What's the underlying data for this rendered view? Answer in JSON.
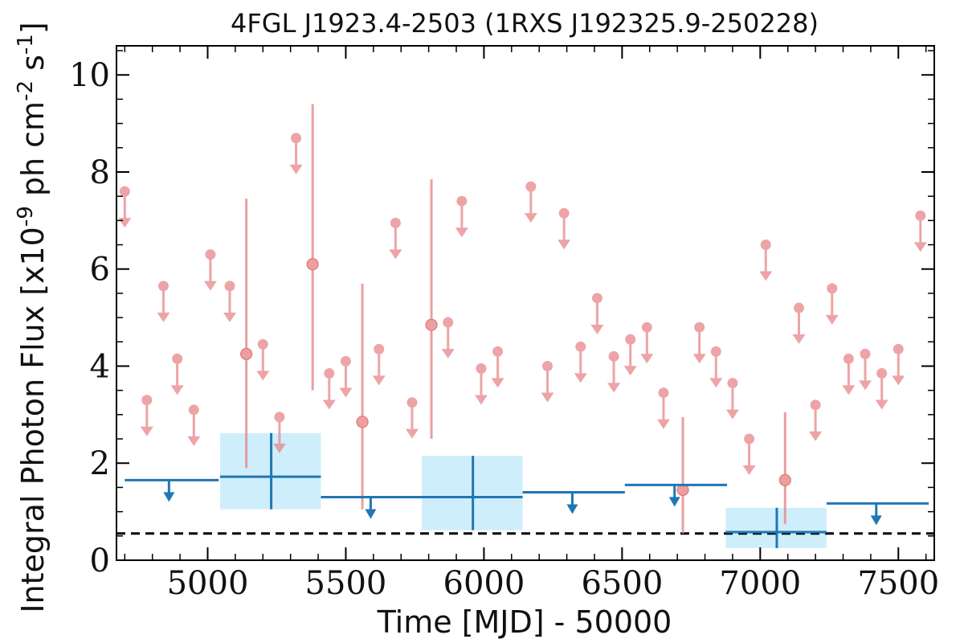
{
  "chart_data": {
    "type": "scatter",
    "title": "4FGL J1923.4-2503 (1RXS J192325.9-250228)",
    "xlabel": "Time [MJD] - 50000",
    "ylabel": "Integral Photon Flux [x10^-9 ph cm^-2 s^-1]",
    "xlim": [
      4670,
      7630
    ],
    "ylim": [
      0,
      10.6
    ],
    "xticks": [
      5000,
      5500,
      6000,
      6500,
      7000,
      7500
    ],
    "yticks": [
      0,
      2,
      4,
      6,
      8,
      10
    ],
    "grid": false,
    "reference_line": {
      "y": 0.55,
      "style": "dashed",
      "color": "#000000"
    },
    "colors": {
      "short_bins": "#e8868a",
      "long_bins": "#1f77b4",
      "long_bins_band": "#cfeefb"
    },
    "series": [
      {
        "style": "short-bin upper limits",
        "points": [
          {
            "x": 4700,
            "y": 7.6
          },
          {
            "x": 4780,
            "y": 3.3
          },
          {
            "x": 4840,
            "y": 5.65
          },
          {
            "x": 4890,
            "y": 4.15
          },
          {
            "x": 4950,
            "y": 3.1
          },
          {
            "x": 5010,
            "y": 6.3
          },
          {
            "x": 5080,
            "y": 5.65
          },
          {
            "x": 5200,
            "y": 4.45
          },
          {
            "x": 5260,
            "y": 2.95
          },
          {
            "x": 5320,
            "y": 8.7
          },
          {
            "x": 5440,
            "y": 3.85
          },
          {
            "x": 5500,
            "y": 4.1
          },
          {
            "x": 5620,
            "y": 4.35
          },
          {
            "x": 5680,
            "y": 6.95
          },
          {
            "x": 5740,
            "y": 3.25
          },
          {
            "x": 5870,
            "y": 4.9
          },
          {
            "x": 5920,
            "y": 7.4
          },
          {
            "x": 5990,
            "y": 3.95
          },
          {
            "x": 6050,
            "y": 4.3
          },
          {
            "x": 6170,
            "y": 7.7
          },
          {
            "x": 6230,
            "y": 4.0
          },
          {
            "x": 6290,
            "y": 7.15
          },
          {
            "x": 6350,
            "y": 4.4
          },
          {
            "x": 6410,
            "y": 5.4
          },
          {
            "x": 6470,
            "y": 4.2
          },
          {
            "x": 6530,
            "y": 4.55
          },
          {
            "x": 6590,
            "y": 4.8
          },
          {
            "x": 6650,
            "y": 3.45
          },
          {
            "x": 6780,
            "y": 4.8
          },
          {
            "x": 6840,
            "y": 4.3
          },
          {
            "x": 6900,
            "y": 3.65
          },
          {
            "x": 6960,
            "y": 2.5
          },
          {
            "x": 7020,
            "y": 6.5
          },
          {
            "x": 7140,
            "y": 5.2
          },
          {
            "x": 7200,
            "y": 3.2
          },
          {
            "x": 7260,
            "y": 5.6
          },
          {
            "x": 7320,
            "y": 4.15
          },
          {
            "x": 7380,
            "y": 4.25
          },
          {
            "x": 7440,
            "y": 3.85
          },
          {
            "x": 7500,
            "y": 4.35
          },
          {
            "x": 7580,
            "y": 7.1
          }
        ]
      },
      {
        "style": "short-bin detections",
        "points": [
          {
            "x": 5140,
            "y": 4.25,
            "yerr_low": 2.35,
            "yerr_high": 3.2
          },
          {
            "x": 5380,
            "y": 6.1,
            "yerr_low": 2.6,
            "yerr_high": 3.3
          },
          {
            "x": 5560,
            "y": 2.85,
            "yerr_low": 1.8,
            "yerr_high": 2.85
          },
          {
            "x": 5810,
            "y": 4.85,
            "yerr_low": 2.35,
            "yerr_high": 3.0
          },
          {
            "x": 6720,
            "y": 1.45,
            "yerr_low": 0.9,
            "yerr_high": 1.5
          },
          {
            "x": 7090,
            "y": 1.65,
            "yerr_low": 0.9,
            "yerr_high": 1.4
          }
        ]
      },
      {
        "style": "long-bin upper limits",
        "points": [
          {
            "x": 4860,
            "x_low": 4700,
            "x_high": 5040,
            "y": 1.65
          },
          {
            "x": 5590,
            "x_low": 5410,
            "x_high": 5775,
            "y": 1.3
          },
          {
            "x": 6320,
            "x_low": 6140,
            "x_high": 6510,
            "y": 1.4
          },
          {
            "x": 6690,
            "x_low": 6510,
            "x_high": 6880,
            "y": 1.55
          },
          {
            "x": 7420,
            "x_low": 7240,
            "x_high": 7610,
            "y": 1.17
          }
        ]
      },
      {
        "style": "long-bin detections",
        "points": [
          {
            "x": 5230,
            "x_low": 5045,
            "x_high": 5410,
            "y": 1.72,
            "y_low": 1.05,
            "y_high": 2.62
          },
          {
            "x": 5960,
            "x_low": 5775,
            "x_high": 6140,
            "y": 1.3,
            "y_low": 0.62,
            "y_high": 2.15
          },
          {
            "x": 7060,
            "x_low": 6875,
            "x_high": 7240,
            "y": 0.58,
            "y_low": 0.25,
            "y_high": 1.08
          }
        ]
      }
    ]
  }
}
